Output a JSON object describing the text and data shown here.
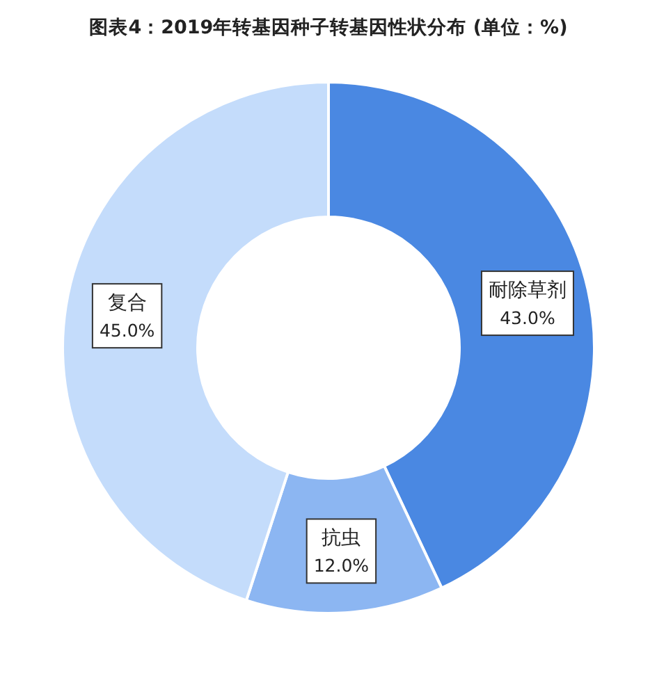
{
  "chart_data": {
    "type": "donut",
    "title": "图表4：2019年转基因种子转基因性状分布 (单位：%)",
    "categories": [
      "耐除草剂",
      "抗虫",
      "复合"
    ],
    "values": [
      43.0,
      12.0,
      45.0
    ],
    "colors": [
      "#4a88e2",
      "#8cb6f2",
      "#c4dcfb"
    ],
    "value_labels": [
      "43.0%",
      "12.0%",
      "45.0%"
    ]
  }
}
